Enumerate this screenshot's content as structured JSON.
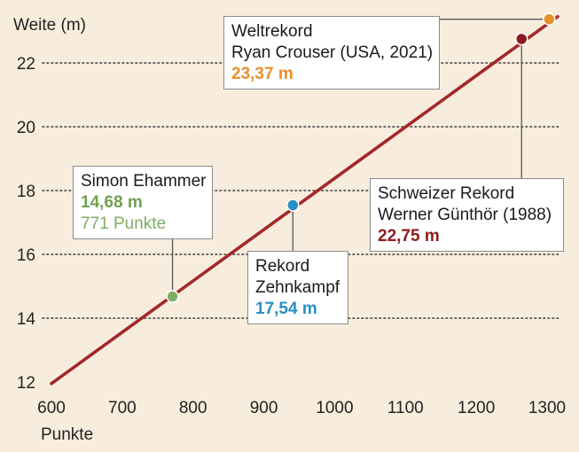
{
  "colors": {
    "background": "#f8eddd",
    "line": "#a3282b",
    "gridline": "#3a3a3a",
    "leader": "#555555",
    "world_record": "#e8902e",
    "swiss_record": "#8e1b1b",
    "decathlon_record": "#2a8fc4",
    "ehammer": "#7fae62"
  },
  "chart_data": {
    "type": "line",
    "ylabel": "Weite (m)",
    "xlabel": "Punkte",
    "xlim": [
      600,
      1300
    ],
    "ylim": [
      12,
      23
    ],
    "x_ticks": [
      600,
      700,
      800,
      900,
      1000,
      1100,
      1200,
      1300
    ],
    "y_ticks": [
      12,
      14,
      16,
      18,
      20,
      22
    ],
    "y_gridlines": [
      14,
      16,
      18,
      20,
      22
    ],
    "grid": "dotted horizontal",
    "series": [
      {
        "points": [
          [
            600,
            11.95
          ],
          [
            1315,
            23.45
          ]
        ]
      }
    ],
    "markers": [
      {
        "id": "weltrekord",
        "x": 1303,
        "y": 23.37,
        "color": "#e8902e"
      },
      {
        "id": "schweizer",
        "x": 1264,
        "y": 22.75,
        "color": "#8e1b1b"
      },
      {
        "id": "zehnkampf",
        "x": 941,
        "y": 17.54,
        "color": "#2a8fc4"
      },
      {
        "id": "ehammer",
        "x": 771,
        "y": 14.68,
        "color": "#7fae62"
      }
    ],
    "annotations": {
      "weltrekord": {
        "line1": "Weltrekord",
        "line2": "Ryan Crouser (USA, 2021)",
        "value": "23,37 m"
      },
      "schweizer": {
        "line1": "Schweizer Rekord",
        "line2": "Werner Günthör (1988)",
        "value": "22,75 m"
      },
      "zehnkampf": {
        "line1": "Rekord",
        "line2": "Zehnkampf",
        "value": "17,54 m"
      },
      "ehammer": {
        "line1": "Simon Ehammer",
        "value": "14,68 m",
        "line3": "771 Punkte"
      }
    }
  }
}
